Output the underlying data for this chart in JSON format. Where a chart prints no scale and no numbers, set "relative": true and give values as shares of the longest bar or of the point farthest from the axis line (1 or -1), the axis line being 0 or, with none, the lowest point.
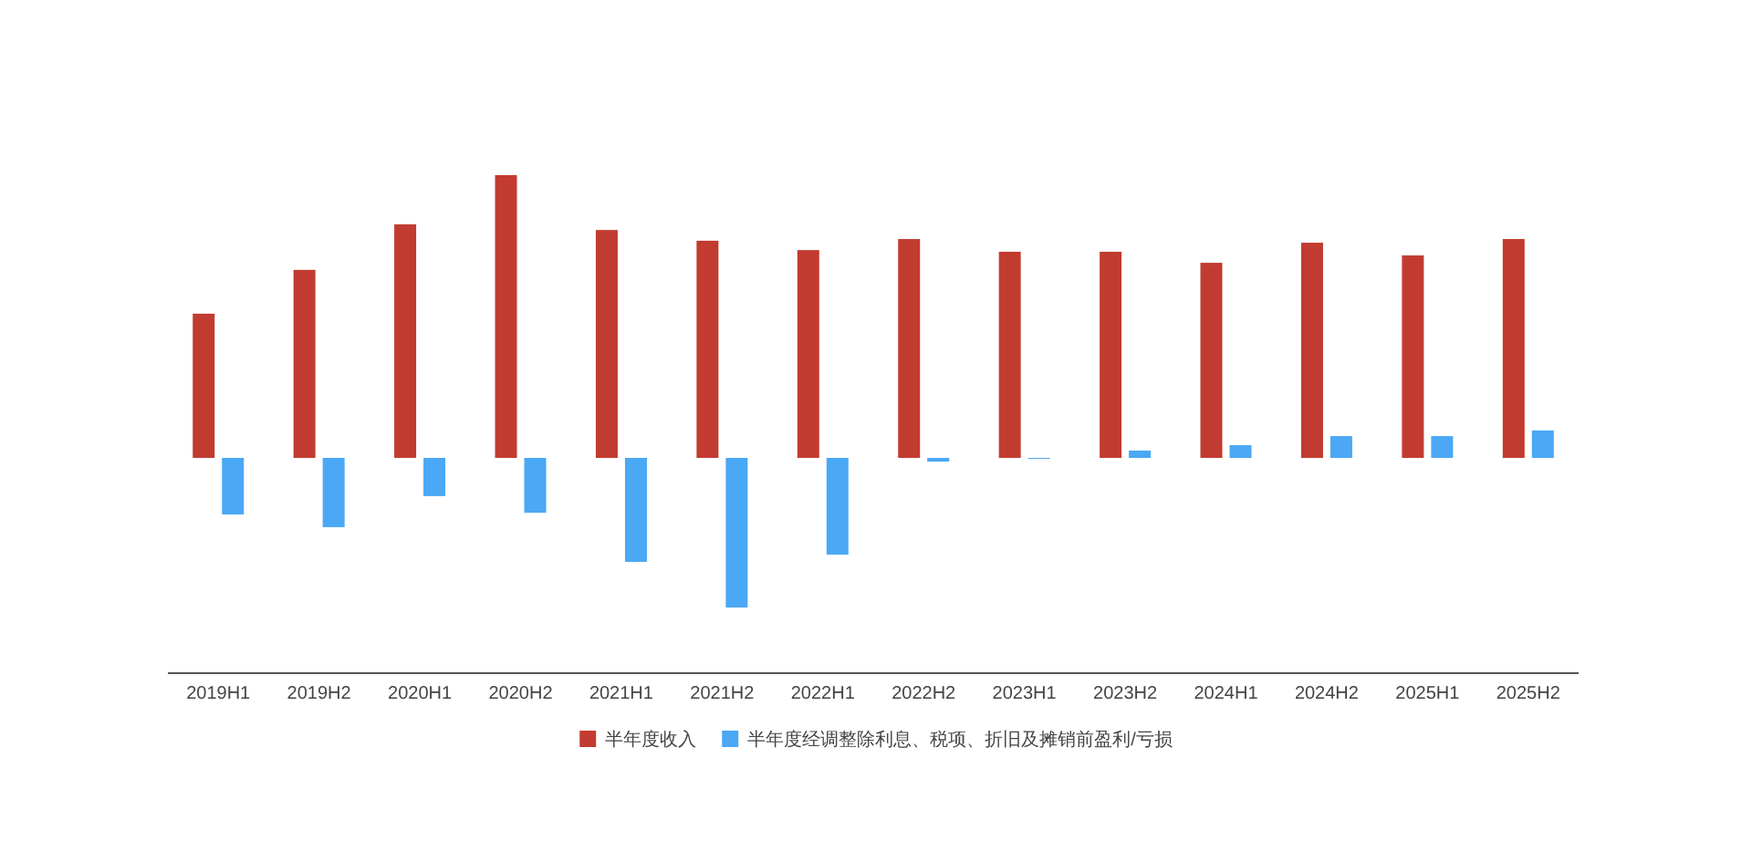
{
  "chart_data": {
    "type": "bar",
    "relative": true,
    "legend": "bottom",
    "grid": false,
    "categories": [
      "2019H1",
      "2019H2",
      "2020H1",
      "2020H2",
      "2021H1",
      "2021H2",
      "2022H1",
      "2022H2",
      "2023H1",
      "2023H2",
      "2024H1",
      "2024H2",
      "2025H1",
      "2025H2"
    ],
    "series": [
      {
        "name": "半年度收入",
        "color": "#c23b30",
        "values": [
          0.51,
          0.665,
          0.826,
          1,
          0.806,
          0.768,
          0.735,
          0.774,
          0.729,
          0.729,
          0.69,
          0.761,
          0.716,
          0.774
        ]
      },
      {
        "name": "半年度经调整除利息、税项、折旧及摊销前盈利/亏损",
        "color": "#4aa8f5",
        "values": [
          -0.2,
          -0.245,
          -0.135,
          -0.194,
          -0.368,
          -0.529,
          -0.342,
          -0.013,
          0,
          0.026,
          0.045,
          0.077,
          0.077,
          0.097
        ]
      }
    ]
  }
}
